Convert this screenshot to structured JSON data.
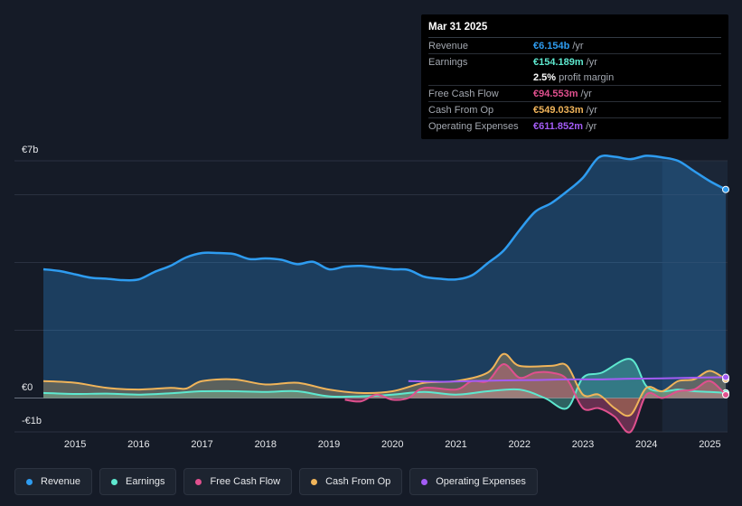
{
  "tooltip": {
    "date": "Mar 31 2025",
    "rows": [
      {
        "label": "Revenue",
        "value": "€6.154b",
        "unit": "/yr",
        "color": "#2e9cf0"
      },
      {
        "label": "Earnings",
        "value": "€154.189m",
        "unit": "/yr",
        "color": "#5ee8cf"
      },
      {
        "label": "",
        "value": "2.5%",
        "unit": "profit margin",
        "color": "#ffffff"
      },
      {
        "label": "Free Cash Flow",
        "value": "€94.553m",
        "unit": "/yr",
        "color": "#e0508e"
      },
      {
        "label": "Cash From Op",
        "value": "€549.033m",
        "unit": "/yr",
        "color": "#f0b45a"
      },
      {
        "label": "Operating Expenses",
        "value": "€611.852m",
        "unit": "/yr",
        "color": "#a35cf5"
      }
    ]
  },
  "chart_data": {
    "type": "line",
    "title": "",
    "xlabel": "",
    "ylabel": "",
    "y_unit": "EUR billions",
    "ylim": [
      -1,
      7
    ],
    "y_tick_labels": [
      "€7b",
      "€0",
      "-€1b"
    ],
    "x_tick_labels": [
      "2015",
      "2016",
      "2017",
      "2018",
      "2019",
      "2020",
      "2021",
      "2022",
      "2023",
      "2024",
      "2025"
    ],
    "xlim": [
      2014.5,
      2025.25
    ],
    "forecast_start": 2024.25,
    "series": [
      {
        "name": "Revenue",
        "color": "#2e9cf0",
        "area": true,
        "points": [
          [
            2014.5,
            3.8
          ],
          [
            2014.75,
            3.75
          ],
          [
            2015,
            3.65
          ],
          [
            2015.25,
            3.55
          ],
          [
            2015.5,
            3.52
          ],
          [
            2015.75,
            3.48
          ],
          [
            2016,
            3.5
          ],
          [
            2016.25,
            3.72
          ],
          [
            2016.5,
            3.9
          ],
          [
            2016.75,
            4.15
          ],
          [
            2017,
            4.28
          ],
          [
            2017.25,
            4.28
          ],
          [
            2017.5,
            4.25
          ],
          [
            2017.75,
            4.1
          ],
          [
            2018,
            4.12
          ],
          [
            2018.25,
            4.08
          ],
          [
            2018.5,
            3.95
          ],
          [
            2018.75,
            4.02
          ],
          [
            2019,
            3.8
          ],
          [
            2019.25,
            3.88
          ],
          [
            2019.5,
            3.9
          ],
          [
            2019.75,
            3.85
          ],
          [
            2020,
            3.8
          ],
          [
            2020.25,
            3.78
          ],
          [
            2020.5,
            3.58
          ],
          [
            2020.75,
            3.52
          ],
          [
            2021,
            3.5
          ],
          [
            2021.25,
            3.62
          ],
          [
            2021.5,
            3.98
          ],
          [
            2021.75,
            4.35
          ],
          [
            2022,
            4.95
          ],
          [
            2022.25,
            5.5
          ],
          [
            2022.5,
            5.75
          ],
          [
            2022.75,
            6.1
          ],
          [
            2023,
            6.5
          ],
          [
            2023.25,
            7.1
          ],
          [
            2023.5,
            7.12
          ],
          [
            2023.75,
            7.05
          ],
          [
            2024,
            7.15
          ],
          [
            2024.25,
            7.1
          ],
          [
            2024.5,
            7.0
          ],
          [
            2024.75,
            6.7
          ],
          [
            2025,
            6.4
          ],
          [
            2025.25,
            6.154
          ]
        ]
      },
      {
        "name": "Earnings",
        "color": "#5ee8cf",
        "area": true,
        "points": [
          [
            2014.5,
            0.15
          ],
          [
            2015,
            0.12
          ],
          [
            2015.5,
            0.13
          ],
          [
            2016,
            0.1
          ],
          [
            2016.5,
            0.14
          ],
          [
            2017,
            0.2
          ],
          [
            2017.5,
            0.2
          ],
          [
            2018,
            0.18
          ],
          [
            2018.5,
            0.2
          ],
          [
            2019,
            0.05
          ],
          [
            2019.5,
            0.05
          ],
          [
            2020,
            0.1
          ],
          [
            2020.5,
            0.18
          ],
          [
            2021,
            0.1
          ],
          [
            2021.5,
            0.2
          ],
          [
            2022,
            0.25
          ],
          [
            2022.4,
            0.0
          ],
          [
            2022.75,
            -0.3
          ],
          [
            2023,
            0.6
          ],
          [
            2023.3,
            0.75
          ],
          [
            2023.75,
            1.15
          ],
          [
            2024,
            0.35
          ],
          [
            2024.25,
            0.2
          ],
          [
            2024.5,
            0.25
          ],
          [
            2024.75,
            0.2
          ],
          [
            2025,
            0.18
          ],
          [
            2025.25,
            0.154
          ]
        ]
      },
      {
        "name": "Free Cash Flow",
        "color": "#e0508e",
        "area": true,
        "points": [
          [
            2019.25,
            -0.05
          ],
          [
            2019.5,
            -0.1
          ],
          [
            2019.75,
            0.1
          ],
          [
            2020,
            -0.05
          ],
          [
            2020.25,
            0.0
          ],
          [
            2020.5,
            0.3
          ],
          [
            2021,
            0.25
          ],
          [
            2021.25,
            0.5
          ],
          [
            2021.5,
            0.5
          ],
          [
            2021.75,
            1.0
          ],
          [
            2022,
            0.6
          ],
          [
            2022.25,
            0.75
          ],
          [
            2022.5,
            0.75
          ],
          [
            2022.75,
            0.55
          ],
          [
            2023,
            -0.3
          ],
          [
            2023.25,
            -0.3
          ],
          [
            2023.5,
            -0.55
          ],
          [
            2023.75,
            -1.0
          ],
          [
            2024,
            0.1
          ],
          [
            2024.25,
            0.0
          ],
          [
            2024.5,
            0.2
          ],
          [
            2024.75,
            0.25
          ],
          [
            2025,
            0.5
          ],
          [
            2025.25,
            0.095
          ]
        ]
      },
      {
        "name": "Cash From Op",
        "color": "#f0b45a",
        "area": true,
        "points": [
          [
            2014.5,
            0.5
          ],
          [
            2015,
            0.45
          ],
          [
            2015.5,
            0.3
          ],
          [
            2016,
            0.25
          ],
          [
            2016.5,
            0.3
          ],
          [
            2016.75,
            0.28
          ],
          [
            2017,
            0.5
          ],
          [
            2017.5,
            0.55
          ],
          [
            2018,
            0.4
          ],
          [
            2018.5,
            0.45
          ],
          [
            2019,
            0.25
          ],
          [
            2019.5,
            0.15
          ],
          [
            2020,
            0.2
          ],
          [
            2020.5,
            0.45
          ],
          [
            2021,
            0.5
          ],
          [
            2021.5,
            0.75
          ],
          [
            2021.75,
            1.3
          ],
          [
            2022,
            0.95
          ],
          [
            2022.5,
            0.95
          ],
          [
            2022.75,
            0.95
          ],
          [
            2023,
            0.1
          ],
          [
            2023.25,
            0.1
          ],
          [
            2023.5,
            -0.3
          ],
          [
            2023.75,
            -0.5
          ],
          [
            2024,
            0.3
          ],
          [
            2024.25,
            0.2
          ],
          [
            2024.5,
            0.5
          ],
          [
            2024.75,
            0.55
          ],
          [
            2025,
            0.8
          ],
          [
            2025.25,
            0.549
          ]
        ]
      },
      {
        "name": "Operating Expenses",
        "color": "#a35cf5",
        "area": false,
        "points": [
          [
            2020.25,
            0.5
          ],
          [
            2020.75,
            0.48
          ],
          [
            2021.25,
            0.5
          ],
          [
            2021.75,
            0.52
          ],
          [
            2022.25,
            0.53
          ],
          [
            2022.75,
            0.55
          ],
          [
            2023.25,
            0.55
          ],
          [
            2023.75,
            0.57
          ],
          [
            2024.25,
            0.58
          ],
          [
            2024.75,
            0.6
          ],
          [
            2025.25,
            0.612
          ]
        ]
      }
    ],
    "legend_position": "bottom"
  }
}
